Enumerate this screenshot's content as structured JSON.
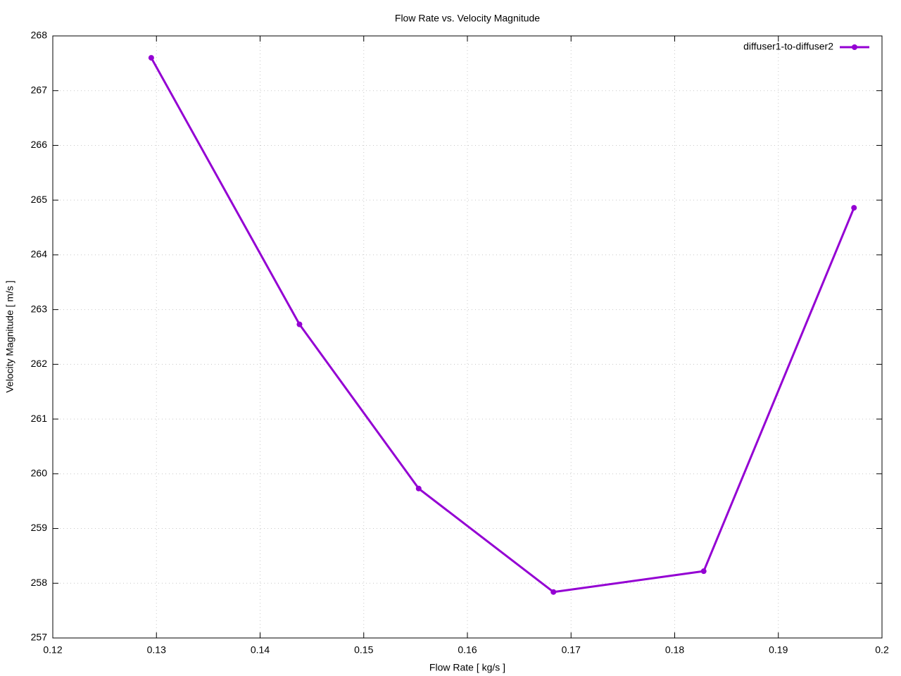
{
  "chart_data": {
    "type": "line",
    "title": "Flow Rate vs. Velocity Magnitude",
    "x_label": "Flow Rate [ kg/s ]",
    "y_label": "Velocity Magnitude [ m/s ]",
    "x": [
      0.1295,
      0.1438,
      0.1553,
      0.1683,
      0.1828,
      0.1973
    ],
    "series": [
      {
        "name": "diffuser1-to-diffuser2",
        "color": "#9400d3",
        "values": [
          267.6,
          262.73,
          259.73,
          257.84,
          258.22,
          264.86
        ]
      }
    ],
    "xlim": [
      0.12,
      0.2
    ],
    "xticks": [
      0.12,
      0.13,
      0.14,
      0.15,
      0.16,
      0.17,
      0.18,
      0.19,
      0.2
    ],
    "ylim": [
      257,
      268
    ],
    "yticks": [
      257,
      258,
      259,
      260,
      261,
      262,
      263,
      264,
      265,
      266,
      267,
      268
    ],
    "grid": true,
    "legend": "top-right"
  }
}
